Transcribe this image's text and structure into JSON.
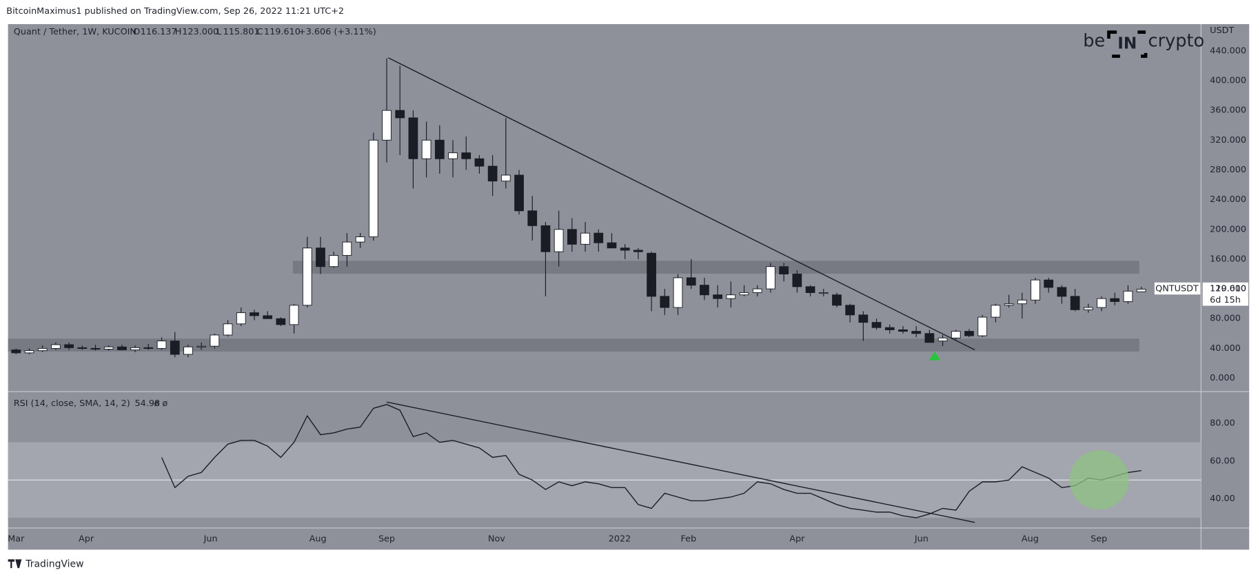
{
  "header": "BitcoinMaximus1 published on TradingView.com, Sep 26, 2022 11:21 UTC+2",
  "footer": "TradingView",
  "logo": {
    "left": "be",
    "middle": "IN",
    "right": "crypto"
  },
  "chart_data": [
    {
      "type": "candlestick",
      "legend": {
        "symbol": "Quant / Tether, 1W, KUCOIN",
        "o": "O",
        "open": "116.137",
        "h": "H",
        "high": "123.000",
        "l": "L",
        "low": "115.801",
        "c": "C",
        "close": "119.610",
        "change": "+3.606 (+3.11%)"
      },
      "currency": "USDT",
      "ticker": "QNTUSDT",
      "last_price_label": "119.610",
      "countdown": "6d 15h",
      "open": [
        38,
        34,
        37,
        40,
        45,
        41,
        40,
        39,
        42,
        38,
        41,
        40,
        50,
        32,
        42,
        43,
        58,
        73,
        88,
        84,
        80,
        72,
        98,
        175,
        150,
        165,
        183,
        190,
        320,
        360,
        350,
        295,
        320,
        295,
        303,
        295,
        285,
        265,
        273,
        225,
        205,
        170,
        200,
        180,
        195,
        182,
        175,
        172,
        168,
        110,
        95,
        135,
        125,
        112,
        107,
        112,
        115,
        120,
        150,
        140,
        123,
        115,
        112,
        98,
        85,
        75,
        68,
        65,
        63,
        60,
        50,
        54,
        63,
        57,
        82,
        98,
        100,
        105,
        132,
        122,
        110,
        92,
        95,
        107,
        103,
        116.137
      ],
      "high": [
        40,
        40,
        44,
        48,
        48,
        44,
        45,
        44,
        45,
        44,
        46,
        55,
        62,
        45,
        48,
        60,
        78,
        95,
        92,
        90,
        82,
        100,
        190,
        190,
        170,
        195,
        195,
        330,
        430,
        420,
        360,
        345,
        340,
        320,
        325,
        300,
        300,
        350,
        280,
        245,
        210,
        225,
        215,
        210,
        200,
        195,
        180,
        175,
        170,
        120,
        140,
        160,
        135,
        125,
        130,
        125,
        125,
        155,
        155,
        145,
        125,
        120,
        115,
        100,
        90,
        80,
        72,
        70,
        70,
        65,
        58,
        65,
        66,
        85,
        100,
        112,
        115,
        135,
        135,
        125,
        120,
        100,
        110,
        115,
        125,
        123
      ],
      "low": [
        32,
        32,
        35,
        38,
        38,
        38,
        37,
        37,
        38,
        35,
        38,
        38,
        28,
        28,
        38,
        40,
        56,
        70,
        78,
        80,
        70,
        60,
        95,
        140,
        148,
        150,
        175,
        185,
        290,
        300,
        255,
        270,
        275,
        270,
        280,
        275,
        245,
        255,
        220,
        185,
        110,
        150,
        170,
        170,
        170,
        175,
        160,
        160,
        90,
        85,
        85,
        120,
        105,
        95,
        95,
        110,
        110,
        115,
        130,
        115,
        110,
        110,
        95,
        75,
        50,
        65,
        60,
        60,
        55,
        48,
        43,
        50,
        55,
        55,
        75,
        95,
        80,
        100,
        115,
        100,
        90,
        88,
        90,
        98,
        100,
        115.801
      ],
      "close": [
        34,
        37,
        40,
        45,
        41,
        40,
        39,
        42,
        38,
        41,
        40,
        50,
        32,
        42,
        43,
        58,
        73,
        88,
        84,
        80,
        72,
        98,
        175,
        150,
        165,
        183,
        190,
        320,
        360,
        350,
        295,
        320,
        295,
        303,
        295,
        285,
        265,
        273,
        225,
        205,
        170,
        200,
        180,
        195,
        182,
        175,
        172,
        170,
        110,
        95,
        135,
        125,
        112,
        107,
        112,
        115,
        120,
        150,
        140,
        123,
        115,
        115,
        98,
        85,
        75,
        68,
        65,
        63,
        60,
        48,
        54,
        63,
        57,
        82,
        98,
        100,
        105,
        132,
        122,
        110,
        92,
        95,
        107,
        103,
        117,
        119.61
      ],
      "xticks": [
        {
          "value": 0,
          "label": "Mar"
        },
        {
          "value": 5.3,
          "label": "Apr"
        },
        {
          "value": 14.7,
          "label": "Jun"
        },
        {
          "value": 22.8,
          "label": "Aug"
        },
        {
          "value": 28,
          "label": "Sep"
        },
        {
          "value": 36.3,
          "label": "Nov"
        },
        {
          "value": 45.6,
          "label": "2022"
        },
        {
          "value": 50.8,
          "label": "Feb"
        },
        {
          "value": 59,
          "label": "Apr"
        },
        {
          "value": 68.4,
          "label": "Jun"
        },
        {
          "value": 76.6,
          "label": "Aug"
        },
        {
          "value": 81.8,
          "label": "Sep"
        }
      ],
      "ylim": [
        -17,
        476
      ],
      "yticks": [
        {
          "value": 0,
          "label": "0.000"
        },
        {
          "value": 40,
          "label": "40.000"
        },
        {
          "value": 80,
          "label": "80.000"
        },
        {
          "value": 120,
          "label": "120.000"
        },
        {
          "value": 160,
          "label": "160.000"
        },
        {
          "value": 200,
          "label": "200.000"
        },
        {
          "value": 240,
          "label": "240.000"
        },
        {
          "value": 280,
          "label": "280.000"
        },
        {
          "value": 320,
          "label": "320.000"
        },
        {
          "value": 360,
          "label": "360.000"
        },
        {
          "value": 400,
          "label": "400.000"
        },
        {
          "value": 440,
          "label": "440.000"
        }
      ],
      "up_color": "#ffffff",
      "down_color": "#1b1d24"
    },
    {
      "type": "line",
      "legend": {
        "name": "RSI (14, close, SMA, 14, 2)",
        "value": "54.98",
        "extra": "ø ø"
      },
      "values": [
        null,
        null,
        null,
        null,
        null,
        null,
        null,
        null,
        null,
        null,
        null,
        62,
        46,
        52,
        54,
        62,
        69,
        71,
        71,
        68,
        62,
        70,
        84,
        74,
        75,
        77,
        78,
        88,
        90,
        87,
        73,
        75,
        70,
        71,
        69,
        67,
        62,
        63,
        53,
        50,
        45,
        49,
        47,
        49,
        48,
        46,
        46,
        37,
        35,
        43,
        41,
        39,
        39,
        40,
        41,
        43,
        49,
        48,
        45,
        43,
        43,
        40,
        37,
        35,
        34,
        33,
        33,
        31,
        30,
        32,
        35,
        34,
        44,
        49,
        49,
        50,
        57,
        54,
        51,
        46,
        47,
        51,
        50,
        52,
        54,
        54.98
      ],
      "ylim": [
        25,
        96
      ],
      "yticks": [
        {
          "value": 40,
          "label": "40.00"
        },
        {
          "value": 60,
          "label": "60.00"
        },
        {
          "value": 80,
          "label": "80.00"
        }
      ],
      "band": [
        30,
        70
      ],
      "midline": 50,
      "color": "#1b1d24"
    }
  ]
}
